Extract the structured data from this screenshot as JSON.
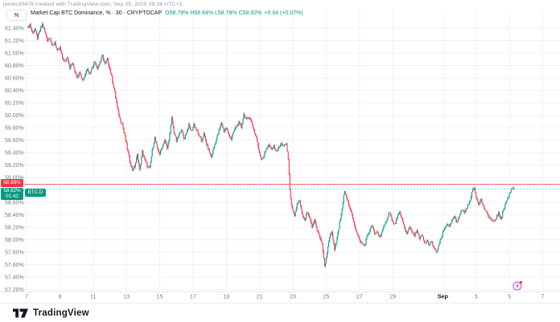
{
  "attribution": "james30478 created with TradingView.com, Sep 05, 2025 09:28 UTC+1",
  "axis_unit_button": "%",
  "legend": {
    "title": "Market Cap BTC Dominance, % · 30 · CRYPTOCAP",
    "ohlc_text": "O58.78% H58.84% L58.78% C58.82%",
    "change_text": "+0.04 (+0.07%)"
  },
  "price_scale": {
    "alert_badge": "58.89%",
    "last_price_badge": "58.82%",
    "countdown": "01:42",
    "symbol_badge": "BTC.D"
  },
  "logo": {
    "text": "TradingView"
  },
  "colors": {
    "up": "#089981",
    "down": "#f23645",
    "alert_line": "#f23645",
    "last_price_line": "#089981",
    "grid": "#f2f3f7",
    "axis_text": "#787b86",
    "legend_text": "#131722",
    "event_icon": "#b14fc4"
  },
  "chart_data": {
    "type": "candlestick",
    "title": "Market Cap BTC Dominance",
    "symbol": "CRYPTOCAP:BTC.D",
    "interval": "30",
    "unit": "%",
    "ohlc": {
      "open": 58.78,
      "high": 58.84,
      "low": 58.78,
      "close": 58.82,
      "change": 0.04,
      "change_pct": 0.07
    },
    "alert_level": 58.89,
    "last_price": 58.82,
    "bar_countdown": "01:42",
    "y_axis": {
      "min": 57.2,
      "max": 61.4,
      "step": 0.2
    },
    "y_tick_labels": [
      "61.40%",
      "61.20%",
      "61.00%",
      "60.80%",
      "60.60%",
      "60.40%",
      "60.20%",
      "60.00%",
      "59.80%",
      "59.60%",
      "59.40%",
      "59.20%",
      "59.00%",
      "58.80%",
      "58.60%",
      "58.40%",
      "58.20%",
      "58.00%",
      "57.80%",
      "57.60%",
      "57.40%",
      "57.20%"
    ],
    "x_axis": {
      "note": "day index: August day-of-month, September days = 31 + day",
      "labels": [
        {
          "text": "7",
          "day": 7
        },
        {
          "text": "9",
          "day": 9
        },
        {
          "text": "11",
          "day": 11
        },
        {
          "text": "13",
          "day": 13
        },
        {
          "text": "15",
          "day": 15
        },
        {
          "text": "17",
          "day": 17
        },
        {
          "text": "19",
          "day": 19
        },
        {
          "text": "21",
          "day": 21
        },
        {
          "text": "23",
          "day": 23
        },
        {
          "text": "25",
          "day": 25
        },
        {
          "text": "27",
          "day": 27
        },
        {
          "text": "29",
          "day": 29
        },
        {
          "text": "Sep",
          "day": 32,
          "bold": true
        },
        {
          "text": "3",
          "day": 34
        },
        {
          "text": "5",
          "day": 36
        },
        {
          "text": "7",
          "day": 38
        }
      ]
    },
    "series_keypoints": [
      [
        7.05,
        61.4
      ],
      [
        7.2,
        61.46
      ],
      [
        7.35,
        61.32
      ],
      [
        7.5,
        61.38
      ],
      [
        7.65,
        61.24
      ],
      [
        7.8,
        61.36
      ],
      [
        7.95,
        61.46
      ],
      [
        8.1,
        61.34
      ],
      [
        8.25,
        61.2
      ],
      [
        8.4,
        61.26
      ],
      [
        8.55,
        61.1
      ],
      [
        8.7,
        61.18
      ],
      [
        8.85,
        61.02
      ],
      [
        9.0,
        61.08
      ],
      [
        9.15,
        60.92
      ],
      [
        9.3,
        60.86
      ],
      [
        9.45,
        60.94
      ],
      [
        9.6,
        60.76
      ],
      [
        9.75,
        60.84
      ],
      [
        9.9,
        60.7
      ],
      [
        10.05,
        60.62
      ],
      [
        10.2,
        60.7
      ],
      [
        10.35,
        60.56
      ],
      [
        10.5,
        60.64
      ],
      [
        10.65,
        60.76
      ],
      [
        10.8,
        60.66
      ],
      [
        10.95,
        60.78
      ],
      [
        11.1,
        60.86
      ],
      [
        11.25,
        60.76
      ],
      [
        11.4,
        60.84
      ],
      [
        11.55,
        60.96
      ],
      [
        11.7,
        60.82
      ],
      [
        11.85,
        60.9
      ],
      [
        12.0,
        60.74
      ],
      [
        12.15,
        60.56
      ],
      [
        12.3,
        60.36
      ],
      [
        12.45,
        60.12
      ],
      [
        12.6,
        59.94
      ],
      [
        12.75,
        59.86
      ],
      [
        12.9,
        59.66
      ],
      [
        13.05,
        59.46
      ],
      [
        13.2,
        59.26
      ],
      [
        13.35,
        59.12
      ],
      [
        13.5,
        59.18
      ],
      [
        13.65,
        59.36
      ],
      [
        13.8,
        59.12
      ],
      [
        13.95,
        59.42
      ],
      [
        14.1,
        59.28
      ],
      [
        14.25,
        59.18
      ],
      [
        14.4,
        59.14
      ],
      [
        14.55,
        59.44
      ],
      [
        14.7,
        59.64
      ],
      [
        14.85,
        59.46
      ],
      [
        15.0,
        59.38
      ],
      [
        15.15,
        59.5
      ],
      [
        15.3,
        59.6
      ],
      [
        15.45,
        59.46
      ],
      [
        15.6,
        59.7
      ],
      [
        15.72,
        59.96
      ],
      [
        15.85,
        59.74
      ],
      [
        16.0,
        59.58
      ],
      [
        16.15,
        59.68
      ],
      [
        16.3,
        59.78
      ],
      [
        16.45,
        59.62
      ],
      [
        16.6,
        59.72
      ],
      [
        16.75,
        59.84
      ],
      [
        16.9,
        59.74
      ],
      [
        17.05,
        59.86
      ],
      [
        17.2,
        59.76
      ],
      [
        17.35,
        59.68
      ],
      [
        17.5,
        59.58
      ],
      [
        17.65,
        59.7
      ],
      [
        17.8,
        59.54
      ],
      [
        17.95,
        59.44
      ],
      [
        18.1,
        59.32
      ],
      [
        18.25,
        59.48
      ],
      [
        18.4,
        59.62
      ],
      [
        18.55,
        59.74
      ],
      [
        18.7,
        59.88
      ],
      [
        18.85,
        59.74
      ],
      [
        19.0,
        59.8
      ],
      [
        19.15,
        59.68
      ],
      [
        19.3,
        59.62
      ],
      [
        19.45,
        59.74
      ],
      [
        19.6,
        59.82
      ],
      [
        19.75,
        59.88
      ],
      [
        19.9,
        59.8
      ],
      [
        20.05,
        60.02
      ],
      [
        20.2,
        59.92
      ],
      [
        20.35,
        59.98
      ],
      [
        20.5,
        59.9
      ],
      [
        20.65,
        59.76
      ],
      [
        20.8,
        59.64
      ],
      [
        20.95,
        59.44
      ],
      [
        21.1,
        59.3
      ],
      [
        21.25,
        59.34
      ],
      [
        21.4,
        59.46
      ],
      [
        21.55,
        59.52
      ],
      [
        21.7,
        59.44
      ],
      [
        21.85,
        59.5
      ],
      [
        22.0,
        59.42
      ],
      [
        22.15,
        59.48
      ],
      [
        22.3,
        59.54
      ],
      [
        22.45,
        59.5
      ],
      [
        22.6,
        59.54
      ],
      [
        22.72,
        59.3
      ],
      [
        22.82,
        58.78
      ],
      [
        22.95,
        58.5
      ],
      [
        23.1,
        58.36
      ],
      [
        23.25,
        58.58
      ],
      [
        23.4,
        58.62
      ],
      [
        23.55,
        58.4
      ],
      [
        23.7,
        58.3
      ],
      [
        23.85,
        58.44
      ],
      [
        24.0,
        58.34
      ],
      [
        24.15,
        58.2
      ],
      [
        24.3,
        58.32
      ],
      [
        24.45,
        58.16
      ],
      [
        24.6,
        58.04
      ],
      [
        24.75,
        57.94
      ],
      [
        24.9,
        57.56
      ],
      [
        25.05,
        57.78
      ],
      [
        25.2,
        58.06
      ],
      [
        25.35,
        58.12
      ],
      [
        25.5,
        57.82
      ],
      [
        25.65,
        58.02
      ],
      [
        25.8,
        58.26
      ],
      [
        25.95,
        58.48
      ],
      [
        26.1,
        58.8
      ],
      [
        26.25,
        58.66
      ],
      [
        26.4,
        58.5
      ],
      [
        26.55,
        58.4
      ],
      [
        26.7,
        58.24
      ],
      [
        26.85,
        58.1
      ],
      [
        27.0,
        57.98
      ],
      [
        27.15,
        57.94
      ],
      [
        27.3,
        57.9
      ],
      [
        27.45,
        58.06
      ],
      [
        27.6,
        58.14
      ],
      [
        27.75,
        58.24
      ],
      [
        27.9,
        58.08
      ],
      [
        28.05,
        58.14
      ],
      [
        28.2,
        58.04
      ],
      [
        28.35,
        58.12
      ],
      [
        28.5,
        58.22
      ],
      [
        28.65,
        58.34
      ],
      [
        28.8,
        58.46
      ],
      [
        28.95,
        58.3
      ],
      [
        29.1,
        58.24
      ],
      [
        29.25,
        58.34
      ],
      [
        29.4,
        58.44
      ],
      [
        29.55,
        58.34
      ],
      [
        29.7,
        58.18
      ],
      [
        29.85,
        58.1
      ],
      [
        30.0,
        58.22
      ],
      [
        30.15,
        58.12
      ],
      [
        30.3,
        58.06
      ],
      [
        30.45,
        58.16
      ],
      [
        30.6,
        58.0
      ],
      [
        30.75,
        58.08
      ],
      [
        30.9,
        57.94
      ],
      [
        31.05,
        57.98
      ],
      [
        31.2,
        57.92
      ],
      [
        31.35,
        57.96
      ],
      [
        31.5,
        57.84
      ],
      [
        31.65,
        57.8
      ],
      [
        31.8,
        57.94
      ],
      [
        31.95,
        58.06
      ],
      [
        32.1,
        58.18
      ],
      [
        32.25,
        58.26
      ],
      [
        32.4,
        58.2
      ],
      [
        32.55,
        58.3
      ],
      [
        32.7,
        58.36
      ],
      [
        32.85,
        58.28
      ],
      [
        33.0,
        58.4
      ],
      [
        33.15,
        58.48
      ],
      [
        33.3,
        58.44
      ],
      [
        33.45,
        58.52
      ],
      [
        33.6,
        58.6
      ],
      [
        33.75,
        58.76
      ],
      [
        33.88,
        58.83
      ],
      [
        34.0,
        58.7
      ],
      [
        34.15,
        58.58
      ],
      [
        34.3,
        58.64
      ],
      [
        34.45,
        58.52
      ],
      [
        34.6,
        58.44
      ],
      [
        34.75,
        58.38
      ],
      [
        34.9,
        58.32
      ],
      [
        35.05,
        58.27
      ],
      [
        35.2,
        58.36
      ],
      [
        35.35,
        58.42
      ],
      [
        35.5,
        58.34
      ],
      [
        35.65,
        58.48
      ],
      [
        35.8,
        58.6
      ],
      [
        35.95,
        58.7
      ],
      [
        36.1,
        58.8
      ],
      [
        36.2,
        58.85
      ],
      [
        36.3,
        58.82
      ]
    ]
  }
}
